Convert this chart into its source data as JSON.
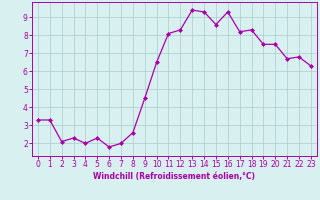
{
  "x": [
    0,
    1,
    2,
    3,
    4,
    5,
    6,
    7,
    8,
    9,
    10,
    11,
    12,
    13,
    14,
    15,
    16,
    17,
    18,
    19,
    20,
    21,
    22,
    23
  ],
  "y": [
    3.3,
    3.3,
    2.1,
    2.3,
    2.0,
    2.3,
    1.8,
    2.0,
    2.6,
    4.5,
    6.5,
    8.1,
    8.3,
    9.4,
    9.3,
    8.6,
    9.3,
    8.2,
    8.3,
    7.5,
    7.5,
    6.7,
    6.8,
    6.3
  ],
  "line_color": "#aa00aa",
  "marker": "D",
  "marker_size": 2.0,
  "bg_color": "#d8f0f0",
  "grid_color": "#aacccc",
  "xlabel": "Windchill (Refroidissement éolien,°C)",
  "xlabel_color": "#aa00aa",
  "tick_color": "#aa00aa",
  "xlim": [
    -0.5,
    23.5
  ],
  "ylim": [
    1.3,
    9.85
  ],
  "yticks": [
    2,
    3,
    4,
    5,
    6,
    7,
    8,
    9
  ],
  "xticks": [
    0,
    1,
    2,
    3,
    4,
    5,
    6,
    7,
    8,
    9,
    10,
    11,
    12,
    13,
    14,
    15,
    16,
    17,
    18,
    19,
    20,
    21,
    22,
    23
  ],
  "spine_color": "#aa00aa",
  "tick_fontsize": 5.5,
  "xlabel_fontsize": 5.5
}
